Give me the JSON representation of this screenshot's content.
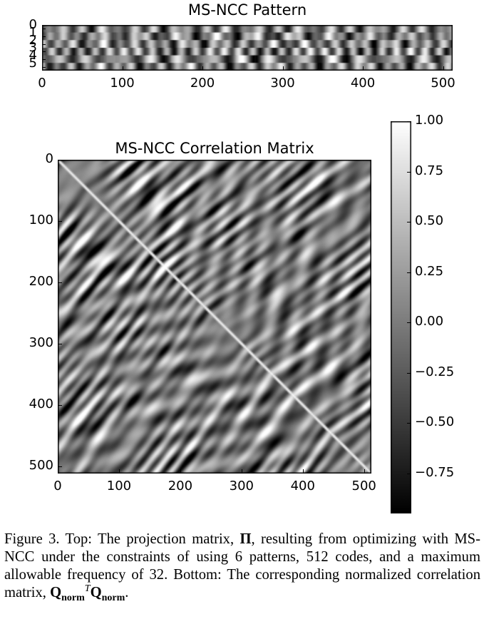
{
  "chart_data": [
    {
      "type": "heatmap",
      "title": "MS-NCC Pattern",
      "description_rows": 6,
      "columns": 512,
      "x_ticks": [
        "0",
        "100",
        "200",
        "300",
        "400",
        "500"
      ],
      "y_ticks": [
        "0",
        "1",
        "2",
        "3",
        "4",
        "5"
      ],
      "xlim": [
        0,
        512
      ],
      "ylim": [
        0,
        6
      ],
      "colormap": "gray"
    },
    {
      "type": "heatmap",
      "title": "MS-NCC Correlation Matrix",
      "rows": 512,
      "columns": 512,
      "x_ticks": [
        "0",
        "100",
        "200",
        "300",
        "400",
        "500"
      ],
      "y_ticks": [
        "0",
        "100",
        "200",
        "300",
        "400",
        "500"
      ],
      "xlim": [
        0,
        512
      ],
      "ylim": [
        0,
        512
      ],
      "diagonal_value": 1.0,
      "colormap": "gray",
      "colorbar": {
        "ticks": [
          "1.00",
          "0.75",
          "0.50",
          "0.25",
          "0.00",
          "−0.25",
          "−0.50",
          "−0.75"
        ],
        "range": [
          -0.95,
          1.0
        ]
      }
    }
  ],
  "caption": {
    "label": "Figure 3.",
    "text_a": " Top: The projection matrix, ",
    "symbol_pi": "Π",
    "text_b": ", resulting from optimizing with MS-NCC under the constraints of using 6 patterns, 512 codes, and a maximum allowable frequency of 32. Bottom: The corresponding normalized correlation matrix, ",
    "q": "Q",
    "sub": "norm",
    "sup": "T",
    "q2": "Q",
    "sub2": "norm",
    "end": "."
  }
}
